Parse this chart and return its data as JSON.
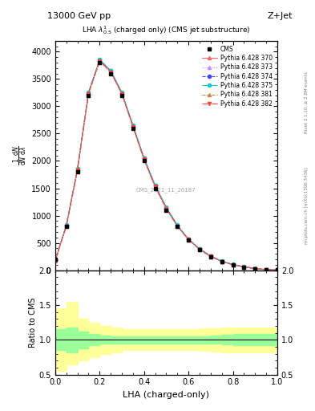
{
  "title_top": "13000 GeV pp",
  "title_right": "Z+Jet",
  "plot_title": "LHA $\\lambda^{1}_{0.5}$ (charged only) (CMS jet substructure)",
  "xlabel": "LHA (charged-only)",
  "ylabel": "1/mathrm{d}N mathrm{d}lambda",
  "ratio_ylabel": "Ratio to CMS",
  "xlim": [
    0.0,
    1.0
  ],
  "ylim_main": [
    0,
    4500
  ],
  "ylim_ratio": [
    0.5,
    2.0
  ],
  "watermark": "CMS_2021_11_26187",
  "rivet_label": "Rivet 3.1.10, ≥ 2.8M events",
  "arxiv_label": "mcplots.cern.ch [arXiv:1306.3436]",
  "lha_x": [
    0.0,
    0.05,
    0.1,
    0.15,
    0.2,
    0.25,
    0.3,
    0.35,
    0.4,
    0.45,
    0.5,
    0.55,
    0.6,
    0.65,
    0.7,
    0.75,
    0.8,
    0.85,
    0.9,
    0.95,
    1.0
  ],
  "cms_y": [
    200,
    800,
    1800,
    3200,
    3800,
    3600,
    3200,
    2600,
    2000,
    1500,
    1100,
    800,
    550,
    380,
    250,
    160,
    100,
    60,
    30,
    10,
    5
  ],
  "pythia_370_y": [
    180,
    820,
    1850,
    3250,
    3850,
    3650,
    3250,
    2650,
    2050,
    1550,
    1150,
    820,
    570,
    390,
    260,
    165,
    105,
    62,
    32,
    11,
    5
  ],
  "pythia_373_y": [
    185,
    810,
    1840,
    3240,
    3840,
    3640,
    3240,
    2640,
    2040,
    1540,
    1140,
    810,
    565,
    385,
    255,
    162,
    102,
    61,
    31,
    10,
    4
  ],
  "pythia_374_y": [
    182,
    815,
    1845,
    3245,
    3845,
    3645,
    3245,
    2645,
    2045,
    1545,
    1145,
    815,
    568,
    388,
    258,
    163,
    103,
    61,
    31,
    10,
    4
  ],
  "pythia_375_y": [
    188,
    825,
    1855,
    3255,
    3855,
    3655,
    3255,
    2655,
    2055,
    1555,
    1155,
    825,
    572,
    392,
    262,
    166,
    106,
    63,
    32,
    11,
    5
  ],
  "pythia_381_y": [
    175,
    800,
    1820,
    3220,
    3820,
    3620,
    3220,
    2620,
    2020,
    1520,
    1120,
    800,
    560,
    380,
    250,
    160,
    100,
    60,
    30,
    10,
    4
  ],
  "pythia_382_y": [
    178,
    805,
    1830,
    3230,
    3830,
    3630,
    3230,
    2630,
    2030,
    1530,
    1130,
    805,
    562,
    382,
    252,
    161,
    101,
    60,
    30,
    10,
    4
  ],
  "cms_error_x": [
    0.0,
    0.05,
    0.1,
    0.15,
    0.2,
    0.25,
    0.3,
    0.35,
    0.4,
    0.45,
    0.5,
    0.55,
    0.6,
    0.65,
    0.7,
    0.75,
    0.8,
    0.85,
    0.9,
    0.95,
    1.0
  ],
  "ratio_green_upper": [
    1.15,
    1.18,
    1.12,
    1.08,
    1.06,
    1.05,
    1.05,
    1.05,
    1.05,
    1.05,
    1.05,
    1.05,
    1.05,
    1.05,
    1.06,
    1.07,
    1.08,
    1.08,
    1.08,
    1.08,
    1.1
  ],
  "ratio_green_lower": [
    0.85,
    0.82,
    0.88,
    0.92,
    0.94,
    0.95,
    0.95,
    0.95,
    0.95,
    0.95,
    0.95,
    0.95,
    0.95,
    0.95,
    0.94,
    0.93,
    0.92,
    0.92,
    0.92,
    0.92,
    0.9
  ],
  "ratio_yellow_upper": [
    1.45,
    1.55,
    1.3,
    1.25,
    1.2,
    1.18,
    1.15,
    1.15,
    1.15,
    1.15,
    1.15,
    1.15,
    1.15,
    1.16,
    1.17,
    1.18,
    1.18,
    1.18,
    1.18,
    1.18,
    1.15
  ],
  "ratio_yellow_lower": [
    0.55,
    0.65,
    0.7,
    0.75,
    0.8,
    0.82,
    0.85,
    0.85,
    0.85,
    0.85,
    0.85,
    0.85,
    0.85,
    0.84,
    0.83,
    0.82,
    0.82,
    0.82,
    0.82,
    0.82,
    0.85
  ],
  "colors": {
    "cms": "black",
    "pythia_370": "#ff6666",
    "pythia_373": "#cc88ff",
    "pythia_374": "#4444ff",
    "pythia_375": "#00cccc",
    "pythia_381": "#cc8844",
    "pythia_382": "#ff4444"
  },
  "legend_labels": [
    "CMS",
    "Pythia 6.428 370",
    "Pythia 6.428 373",
    "Pythia 6.428 374",
    "Pythia 6.428 375",
    "Pythia 6.428 381",
    "Pythia 6.428 382"
  ],
  "yticks_main": [
    0,
    500,
    1000,
    1500,
    2000,
    2500,
    3000,
    3500,
    4000
  ],
  "yticks_ratio": [
    0.5,
    1.0,
    1.5,
    2.0
  ]
}
